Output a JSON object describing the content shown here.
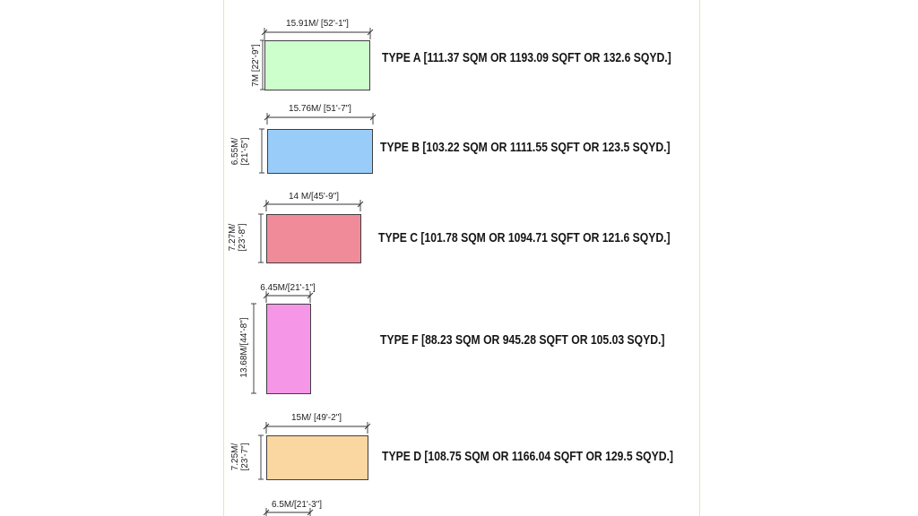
{
  "colors": {
    "type_a": "#ccffcc",
    "type_b": "#99ccf8",
    "type_c": "#f08c9a",
    "type_f": "#f596e6",
    "type_d": "#fad7a0"
  },
  "plots": [
    {
      "id": "a",
      "width_label": "15.91M/ [52'-1\"]",
      "height_label": "7M [22'-9\"]",
      "description": "TYPE A [111.37 SQM OR 1193.09 SQFT OR 132.6 SQYD.]"
    },
    {
      "id": "b",
      "width_label": "15.76M/ [51'-7\"]",
      "height_label_line1": "6.55M/",
      "height_label_line2": "[21'-5\"]",
      "description": "TYPE B [103.22 SQM OR 1111.55 SQFT OR 123.5 SQYD.]"
    },
    {
      "id": "c",
      "width_label": "14 M/[45'-9\"]",
      "height_label_line1": "7.27M/",
      "height_label_line2": "[23'-8\"]",
      "description": "TYPE C [101.78 SQM OR 1094.71 SQFT OR 121.6 SQYD.]"
    },
    {
      "id": "f",
      "width_label": "6.45M/[21'-1\"]",
      "height_label": "13.68M/[44'-8\"]",
      "description": "TYPE F [88.23 SQM OR 945.28 SQFT OR 105.03 SQYD.]"
    },
    {
      "id": "d",
      "width_label": "15M/ [49'-2\"]",
      "height_label_line1": "7.25M/",
      "height_label_line2": "[23'-7\"]",
      "description": "TYPE D [108.75 SQM OR 1166.04 SQFT OR 129.5 SQYD.]"
    },
    {
      "id": "e",
      "width_label": "6.5M/[21'-3\"]"
    }
  ]
}
